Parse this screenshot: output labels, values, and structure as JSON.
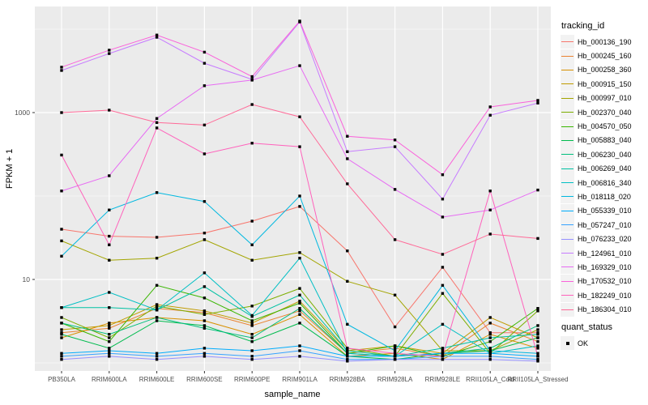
{
  "axes": {
    "y_title": "FPKM + 1",
    "x_title": "sample_name",
    "y_tick_labels": [
      "1000",
      "10"
    ]
  },
  "legend": {
    "tracking_title": "tracking_id",
    "quant_title": "quant_status",
    "quant_items": [
      {
        "label": "OK",
        "marker": "black-square"
      }
    ]
  },
  "colors": {
    "panel_bg": "#EBEBEB",
    "grid": "#FFFFFF",
    "tick_text": "#4D4D4D",
    "tick_mark": "#333333",
    "point": "#000000",
    "legend_key_bg": "#F2F2F2"
  },
  "chart_data": {
    "type": "line",
    "title": "",
    "xlabel": "sample_name",
    "ylabel": "FPKM + 1",
    "y_scale": "log10",
    "y_major_breaks": [
      10,
      1000
    ],
    "y_minor_breaks": [
      1,
      100,
      10000
    ],
    "ylim_log10": [
      -0.1,
      4.3
    ],
    "grid": "on",
    "legend_position": "right",
    "point_marker": "black-square",
    "categories": [
      "PB350LA",
      "RRIM600LA",
      "RRIM600LE",
      "RRIM600SE",
      "RRIM600PE",
      "RRIM901LA",
      "RRIM928BA",
      "RRIM928LA",
      "RRIM928LE",
      "RRII105LA_Cold",
      "RRII105LA_Stressed"
    ],
    "series": [
      {
        "name": "Hb_000136_190",
        "color": "#F8766D",
        "values": [
          40,
          33,
          32,
          36,
          50,
          75,
          22,
          2.7,
          14,
          2.3,
          2.3
        ]
      },
      {
        "name": "Hb_000245_160",
        "color": "#EA8331",
        "values": [
          2.3,
          2.6,
          4.5,
          4.0,
          2.8,
          4.2,
          1.3,
          1.5,
          1.2,
          3.0,
          1.8
        ]
      },
      {
        "name": "Hb_000258_360",
        "color": "#D89000",
        "values": [
          2.0,
          3.0,
          3.5,
          3.2,
          2.2,
          3.8,
          1.2,
          1.3,
          1.1,
          2.2,
          1.5
        ]
      },
      {
        "name": "Hb_000915_150",
        "color": "#C09B00",
        "values": [
          2.5,
          2.8,
          5.0,
          4.2,
          3.0,
          5.5,
          1.4,
          1.6,
          1.3,
          3.5,
          2.0
        ]
      },
      {
        "name": "Hb_000997_010",
        "color": "#A3A500",
        "values": [
          29,
          17,
          18,
          30,
          17,
          21,
          9.5,
          6.5,
          1.4,
          1.4,
          2.5
        ]
      },
      {
        "name": "Hb_002370_040",
        "color": "#7CAE00",
        "values": [
          3.5,
          2.0,
          4.8,
          3.8,
          4.8,
          7.8,
          1.5,
          1.2,
          6.8,
          1.3,
          4.2
        ]
      },
      {
        "name": "Hb_004570_050",
        "color": "#39B600",
        "values": [
          3.0,
          1.8,
          8.5,
          6.0,
          3.2,
          5.2,
          1.3,
          1.6,
          1.2,
          1.8,
          4.5
        ]
      },
      {
        "name": "Hb_005883_040",
        "color": "#00BB4E",
        "values": [
          2.2,
          1.5,
          3.2,
          2.8,
          1.8,
          3.0,
          1.2,
          1.1,
          1.3,
          1.4,
          2.0
        ]
      },
      {
        "name": "Hb_006230_040",
        "color": "#00BF7D",
        "values": [
          3.0,
          2.2,
          3.5,
          2.6,
          2.0,
          4.5,
          1.3,
          1.2,
          1.3,
          1.5,
          2.8
        ]
      },
      {
        "name": "Hb_006269_040",
        "color": "#00C1A3",
        "values": [
          4.6,
          4.6,
          4.3,
          8.2,
          3.6,
          6.5,
          1.4,
          1.2,
          1.5,
          2.0,
          2.2
        ]
      },
      {
        "name": "Hb_006816_340",
        "color": "#00BFC4",
        "values": [
          4.6,
          7.0,
          4.3,
          12,
          3.7,
          18,
          1.3,
          1.2,
          2.9,
          1.3,
          1.6
        ]
      },
      {
        "name": "Hb_018118_020",
        "color": "#00B8E0",
        "values": [
          19,
          68,
          110,
          86,
          26,
          100,
          2.9,
          1.4,
          8.5,
          1.4,
          1.3
        ]
      },
      {
        "name": "Hb_055339_010",
        "color": "#00ACFC",
        "values": [
          1.3,
          1.4,
          1.3,
          1.5,
          1.4,
          1.6,
          1.2,
          1.2,
          1.3,
          1.3,
          1.2
        ]
      },
      {
        "name": "Hb_057247_010",
        "color": "#35A2FF",
        "values": [
          1.2,
          1.3,
          1.2,
          1.3,
          1.2,
          1.4,
          1.1,
          1.1,
          1.2,
          1.2,
          1.1
        ]
      },
      {
        "name": "Hb_076233_020",
        "color": "#9590FF",
        "values": [
          1.1,
          1.2,
          1.1,
          1.2,
          1.1,
          1.2,
          1.05,
          1.1,
          1.1,
          1.1,
          1.05
        ]
      },
      {
        "name": "Hb_124961_010",
        "color": "#C77CFF",
        "values": [
          3200,
          5100,
          8000,
          3900,
          2500,
          12200,
          340,
          390,
          92,
          930,
          1300
        ]
      },
      {
        "name": "Hb_169329_010",
        "color": "#E76BF3",
        "values": [
          115,
          175,
          850,
          2100,
          2450,
          3650,
          280,
          120,
          56,
          68,
          118
        ]
      },
      {
        "name": "Hb_170532_010",
        "color": "#FA62DB",
        "values": [
          3500,
          5600,
          8500,
          5300,
          2700,
          12500,
          520,
          470,
          180,
          1170,
          1400
        ]
      },
      {
        "name": "Hb_182249_010",
        "color": "#FF62BC",
        "values": [
          310,
          26,
          655,
          320,
          430,
          390,
          1.5,
          1.3,
          1.2,
          115,
          1.2
        ]
      },
      {
        "name": "Hb_186304_010",
        "color": "#FF6A98",
        "values": [
          1000,
          1070,
          760,
          710,
          1250,
          890,
          140,
          30,
          20,
          35,
          31
        ]
      }
    ]
  }
}
